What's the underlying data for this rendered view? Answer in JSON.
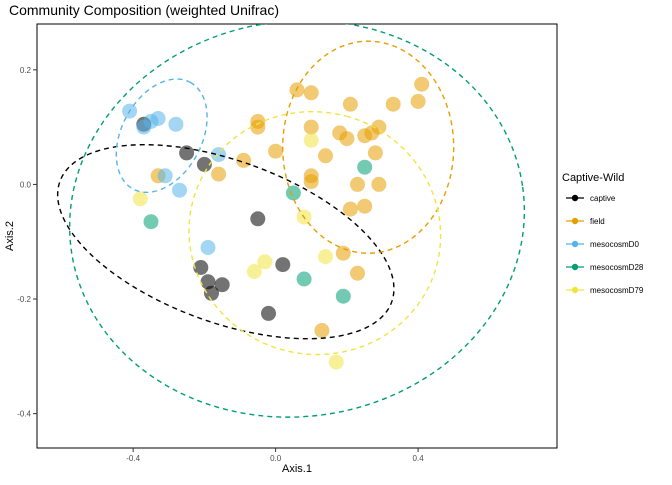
{
  "chart_data": {
    "type": "scatter",
    "title": "Community Composition (weighted Unifrac)",
    "xlabel": "Axis.1",
    "ylabel": "Axis.2",
    "xlim": [
      -0.67,
      0.79
    ],
    "ylim": [
      -0.46,
      0.28
    ],
    "x_ticks": [
      -0.4,
      0.0,
      0.4
    ],
    "x_tick_labels": [
      "-0.4",
      "0.0",
      "0.4"
    ],
    "y_ticks": [
      -0.4,
      -0.2,
      0.0,
      0.2
    ],
    "y_tick_labels": [
      "-0.4",
      "-0.2",
      "0.0",
      "0.2"
    ],
    "grid": false,
    "legend": {
      "title": "Captive-Wild",
      "placement": "right"
    },
    "point_opacity": 0.55,
    "series": [
      {
        "name": "captive",
        "color": "#000000",
        "points": [
          [
            -0.37,
            0.105
          ],
          [
            -0.25,
            0.055
          ],
          [
            -0.2,
            0.035
          ],
          [
            -0.21,
            -0.145
          ],
          [
            -0.19,
            -0.17
          ],
          [
            -0.15,
            -0.175
          ],
          [
            -0.18,
            -0.19
          ],
          [
            -0.05,
            -0.06
          ],
          [
            -0.02,
            -0.225
          ],
          [
            0.02,
            -0.14
          ]
        ],
        "ellipse": {
          "center": [
            -0.14,
            -0.1
          ],
          "rx": 0.227,
          "ry": 0.308,
          "rotation_deg": -70
        }
      },
      {
        "name": "field",
        "color": "#E69F00",
        "points": [
          [
            0.06,
            0.165
          ],
          [
            0.1,
            0.16
          ],
          [
            0.21,
            0.14
          ],
          [
            0.33,
            0.14
          ],
          [
            0.4,
            0.145
          ],
          [
            0.41,
            0.175
          ],
          [
            -0.05,
            0.11
          ],
          [
            -0.05,
            0.1
          ],
          [
            0.1,
            0.1
          ],
          [
            0.18,
            0.09
          ],
          [
            0.2,
            0.08
          ],
          [
            0.25,
            0.085
          ],
          [
            0.27,
            0.09
          ],
          [
            0.29,
            0.1
          ],
          [
            -0.0,
            0.058
          ],
          [
            0.14,
            0.05
          ],
          [
            0.28,
            0.055
          ],
          [
            -0.09,
            0.042
          ],
          [
            -0.16,
            0.018
          ],
          [
            -0.33,
            0.015
          ],
          [
            0.1,
            0.015
          ],
          [
            0.1,
            0.005
          ],
          [
            0.23,
            0.0
          ],
          [
            0.29,
            0.0
          ],
          [
            0.21,
            -0.043
          ],
          [
            0.25,
            -0.038
          ],
          [
            0.19,
            -0.12
          ],
          [
            0.23,
            -0.155
          ],
          [
            0.13,
            -0.255
          ]
        ],
        "ellipse": {
          "center": [
            0.26,
            0.065
          ],
          "rx": 0.24,
          "ry": 0.185,
          "rotation_deg": 0
        }
      },
      {
        "name": "mesocosmD0",
        "color": "#56B4E9",
        "points": [
          [
            -0.41,
            0.128
          ],
          [
            -0.37,
            0.1
          ],
          [
            -0.35,
            0.11
          ],
          [
            -0.33,
            0.115
          ],
          [
            -0.28,
            0.105
          ],
          [
            -0.31,
            0.015
          ],
          [
            -0.27,
            -0.01
          ],
          [
            -0.16,
            0.052
          ],
          [
            -0.19,
            -0.11
          ]
        ],
        "ellipse": {
          "center": [
            -0.32,
            0.085
          ],
          "rx": 0.17,
          "ry": 0.07,
          "rotation_deg": -62
        }
      },
      {
        "name": "mesocosmD28",
        "color": "#009E73",
        "points": [
          [
            -0.35,
            -0.065
          ],
          [
            0.25,
            0.03
          ],
          [
            0.05,
            -0.015
          ],
          [
            0.08,
            -0.165
          ],
          [
            0.19,
            -0.195
          ]
        ],
        "ellipse": {
          "center": [
            0.06,
            -0.06
          ],
          "rx": 0.64,
          "ry": 0.345,
          "rotation_deg": -8
        }
      },
      {
        "name": "mesocosmD79",
        "color": "#F0E442",
        "points": [
          [
            -0.38,
            -0.025
          ],
          [
            0.1,
            0.077
          ],
          [
            0.08,
            -0.057
          ],
          [
            -0.03,
            -0.135
          ],
          [
            -0.06,
            -0.152
          ],
          [
            0.14,
            -0.126
          ],
          [
            0.17,
            -0.31
          ]
        ],
        "ellipse": {
          "center": [
            0.11,
            -0.085
          ],
          "rx": 0.34,
          "ry": 0.22,
          "rotation_deg": -75
        }
      }
    ]
  }
}
